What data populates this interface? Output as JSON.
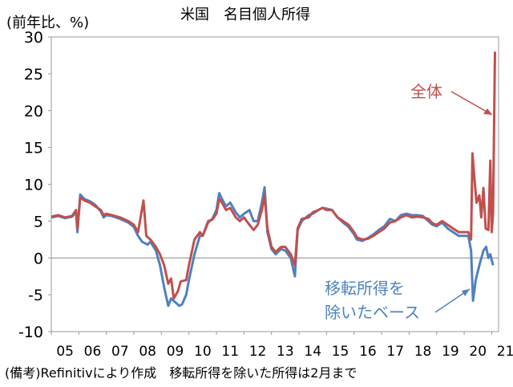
{
  "chart_data": {
    "type": "line",
    "title": "米国　名目個人所得",
    "ylabel": "(前年比、%)",
    "ylim": [
      -10,
      30
    ],
    "yticks": [
      30,
      25,
      20,
      15,
      10,
      5,
      0,
      -5,
      -10
    ],
    "xlim": [
      2005.0,
      2021.25
    ],
    "xtick_labels": [
      "05",
      "06",
      "07",
      "08",
      "09",
      "10",
      "11",
      "12",
      "13",
      "14",
      "15",
      "16",
      "17",
      "18",
      "19",
      "20",
      "21"
    ],
    "note": "(備考)Refinitivにより作成　移転所得を除いた所得は2月まで",
    "zero_line": true,
    "series": [
      {
        "name": "全体",
        "color": "#c0504d",
        "label_text": "全体",
        "points": [
          [
            2005.0,
            5.6
          ],
          [
            2005.25,
            5.8
          ],
          [
            2005.5,
            5.5
          ],
          [
            2005.75,
            5.7
          ],
          [
            2005.9,
            6.5
          ],
          [
            2005.95,
            4.0
          ],
          [
            2006.05,
            8.2
          ],
          [
            2006.2,
            7.8
          ],
          [
            2006.4,
            7.5
          ],
          [
            2006.6,
            7.0
          ],
          [
            2006.8,
            6.5
          ],
          [
            2006.9,
            5.8
          ],
          [
            2007.0,
            6.0
          ],
          [
            2007.2,
            5.8
          ],
          [
            2007.5,
            5.5
          ],
          [
            2007.8,
            5.0
          ],
          [
            2008.0,
            4.5
          ],
          [
            2008.15,
            3.5
          ],
          [
            2008.35,
            7.8
          ],
          [
            2008.45,
            3.0
          ],
          [
            2008.6,
            2.5
          ],
          [
            2008.8,
            1.5
          ],
          [
            2008.95,
            0.5
          ],
          [
            2009.1,
            -1.0
          ],
          [
            2009.25,
            -3.5
          ],
          [
            2009.35,
            -2.8
          ],
          [
            2009.45,
            -5.5
          ],
          [
            2009.6,
            -4.5
          ],
          [
            2009.7,
            -3.2
          ],
          [
            2009.9,
            -3.0
          ],
          [
            2010.0,
            -1.0
          ],
          [
            2010.2,
            2.5
          ],
          [
            2010.4,
            3.5
          ],
          [
            2010.5,
            3.0
          ],
          [
            2010.7,
            5.0
          ],
          [
            2010.85,
            5.2
          ],
          [
            2011.0,
            6.0
          ],
          [
            2011.1,
            8.0
          ],
          [
            2011.2,
            7.5
          ],
          [
            2011.35,
            6.5
          ],
          [
            2011.5,
            6.8
          ],
          [
            2011.7,
            5.5
          ],
          [
            2011.85,
            5.0
          ],
          [
            2012.0,
            5.5
          ],
          [
            2012.2,
            4.5
          ],
          [
            2012.35,
            3.8
          ],
          [
            2012.5,
            4.5
          ],
          [
            2012.65,
            6.5
          ],
          [
            2012.75,
            8.5
          ],
          [
            2012.85,
            4.0
          ],
          [
            2013.0,
            1.5
          ],
          [
            2013.15,
            0.8
          ],
          [
            2013.35,
            1.5
          ],
          [
            2013.5,
            1.5
          ],
          [
            2013.7,
            0.5
          ],
          [
            2013.85,
            -1.0
          ],
          [
            2013.95,
            4.0
          ],
          [
            2014.1,
            5.3
          ],
          [
            2014.35,
            5.5
          ],
          [
            2014.5,
            6.2
          ],
          [
            2014.7,
            6.5
          ],
          [
            2014.85,
            6.8
          ],
          [
            2015.0,
            6.5
          ],
          [
            2015.2,
            6.5
          ],
          [
            2015.4,
            5.5
          ],
          [
            2015.6,
            5.0
          ],
          [
            2015.8,
            4.5
          ],
          [
            2016.0,
            3.5
          ],
          [
            2016.1,
            2.8
          ],
          [
            2016.3,
            2.5
          ],
          [
            2016.5,
            2.6
          ],
          [
            2016.7,
            3.0
          ],
          [
            2016.9,
            3.5
          ],
          [
            2017.1,
            4.0
          ],
          [
            2017.3,
            4.8
          ],
          [
            2017.5,
            5.0
          ],
          [
            2017.7,
            5.5
          ],
          [
            2017.9,
            5.8
          ],
          [
            2018.1,
            5.5
          ],
          [
            2018.3,
            5.6
          ],
          [
            2018.5,
            5.5
          ],
          [
            2018.7,
            5.3
          ],
          [
            2018.85,
            4.7
          ],
          [
            2019.0,
            4.5
          ],
          [
            2019.2,
            5.0
          ],
          [
            2019.4,
            4.5
          ],
          [
            2019.6,
            4.0
          ],
          [
            2019.8,
            3.5
          ],
          [
            2020.0,
            3.5
          ],
          [
            2020.15,
            3.5
          ],
          [
            2020.25,
            2.5
          ],
          [
            2020.3,
            14.2
          ],
          [
            2020.38,
            10.5
          ],
          [
            2020.45,
            7.5
          ],
          [
            2020.55,
            8.5
          ],
          [
            2020.62,
            5.5
          ],
          [
            2020.7,
            9.5
          ],
          [
            2020.78,
            4.0
          ],
          [
            2020.88,
            3.8
          ],
          [
            2020.95,
            13.2
          ],
          [
            2021.0,
            3.5
          ],
          [
            2021.05,
            6.0
          ],
          [
            2021.12,
            28.0
          ]
        ]
      },
      {
        "name": "移転所得を除いたベース",
        "color": "#4f81bd",
        "label_text": [
          "移転所得を",
          "除いたベース"
        ],
        "points": [
          [
            2005.0,
            5.5
          ],
          [
            2005.25,
            5.7
          ],
          [
            2005.5,
            5.4
          ],
          [
            2005.75,
            5.6
          ],
          [
            2005.9,
            6.2
          ],
          [
            2005.95,
            3.5
          ],
          [
            2006.05,
            8.6
          ],
          [
            2006.2,
            8.0
          ],
          [
            2006.4,
            7.7
          ],
          [
            2006.6,
            7.2
          ],
          [
            2006.8,
            6.3
          ],
          [
            2006.9,
            5.5
          ],
          [
            2007.0,
            5.8
          ],
          [
            2007.2,
            5.7
          ],
          [
            2007.5,
            5.3
          ],
          [
            2007.8,
            4.8
          ],
          [
            2008.0,
            4.2
          ],
          [
            2008.15,
            3.0
          ],
          [
            2008.3,
            2.2
          ],
          [
            2008.5,
            1.8
          ],
          [
            2008.6,
            2.2
          ],
          [
            2008.8,
            1.0
          ],
          [
            2008.95,
            -1.0
          ],
          [
            2009.1,
            -4.0
          ],
          [
            2009.25,
            -6.5
          ],
          [
            2009.35,
            -5.5
          ],
          [
            2009.5,
            -6.0
          ],
          [
            2009.65,
            -6.5
          ],
          [
            2009.75,
            -6.3
          ],
          [
            2009.9,
            -5.0
          ],
          [
            2010.0,
            -3.0
          ],
          [
            2010.2,
            0.5
          ],
          [
            2010.4,
            3.0
          ],
          [
            2010.5,
            3.0
          ],
          [
            2010.7,
            4.8
          ],
          [
            2010.85,
            5.3
          ],
          [
            2011.0,
            6.5
          ],
          [
            2011.1,
            8.8
          ],
          [
            2011.2,
            8.0
          ],
          [
            2011.35,
            7.0
          ],
          [
            2011.5,
            7.5
          ],
          [
            2011.7,
            6.2
          ],
          [
            2011.85,
            5.5
          ],
          [
            2012.0,
            6.0
          ],
          [
            2012.2,
            6.5
          ],
          [
            2012.35,
            5.0
          ],
          [
            2012.5,
            5.0
          ],
          [
            2012.65,
            7.5
          ],
          [
            2012.75,
            9.6
          ],
          [
            2012.85,
            3.5
          ],
          [
            2013.0,
            1.2
          ],
          [
            2013.15,
            0.5
          ],
          [
            2013.35,
            1.2
          ],
          [
            2013.5,
            1.0
          ],
          [
            2013.7,
            0.0
          ],
          [
            2013.85,
            -2.5
          ],
          [
            2013.95,
            3.8
          ],
          [
            2014.1,
            5.0
          ],
          [
            2014.35,
            5.8
          ],
          [
            2014.5,
            6.0
          ],
          [
            2014.7,
            6.5
          ],
          [
            2014.85,
            6.8
          ],
          [
            2015.0,
            6.7
          ],
          [
            2015.2,
            6.5
          ],
          [
            2015.4,
            5.5
          ],
          [
            2015.6,
            4.8
          ],
          [
            2015.8,
            4.2
          ],
          [
            2016.0,
            3.2
          ],
          [
            2016.1,
            2.5
          ],
          [
            2016.3,
            2.3
          ],
          [
            2016.5,
            2.7
          ],
          [
            2016.7,
            3.2
          ],
          [
            2016.9,
            3.8
          ],
          [
            2017.1,
            4.3
          ],
          [
            2017.3,
            5.3
          ],
          [
            2017.5,
            5.0
          ],
          [
            2017.7,
            5.8
          ],
          [
            2017.9,
            6.0
          ],
          [
            2018.1,
            5.8
          ],
          [
            2018.3,
            5.8
          ],
          [
            2018.5,
            5.7
          ],
          [
            2018.7,
            5.0
          ],
          [
            2018.85,
            4.5
          ],
          [
            2019.0,
            4.3
          ],
          [
            2019.2,
            4.8
          ],
          [
            2019.4,
            4.0
          ],
          [
            2019.6,
            3.5
          ],
          [
            2019.8,
            3.0
          ],
          [
            2020.0,
            3.0
          ],
          [
            2020.15,
            3.0
          ],
          [
            2020.25,
            1.0
          ],
          [
            2020.32,
            -5.8
          ],
          [
            2020.42,
            -3.0
          ],
          [
            2020.55,
            -1.0
          ],
          [
            2020.7,
            1.0
          ],
          [
            2020.8,
            1.5
          ],
          [
            2020.88,
            0.0
          ],
          [
            2020.95,
            0.5
          ],
          [
            2021.05,
            -1.0
          ]
        ]
      }
    ]
  }
}
